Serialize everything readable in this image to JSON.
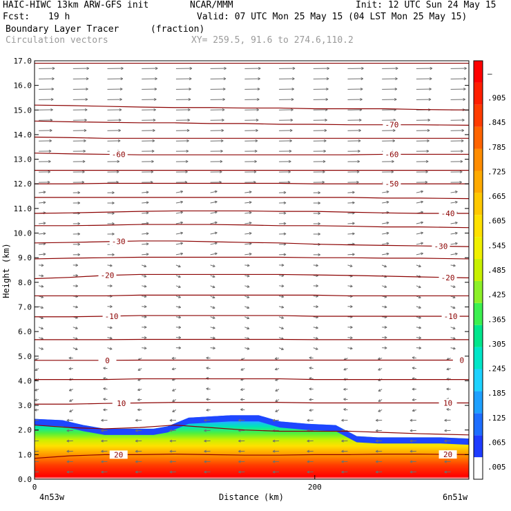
{
  "header": {
    "model": "HAIC-HIWC 13km ARW-GFS init",
    "org": "NCAR/MMM",
    "init": "Init: 12 UTC Sun 24 May 15",
    "fcst_label": "Fcst:",
    "fcst_value": "19 h",
    "valid": "Valid: 07 UTC Mon 25 May 15 (04 LST Mon 25 May 15)",
    "field_name": "Boundary Layer Tracer",
    "field_units": "(fraction)",
    "vector_label": "Circulation vectors",
    "xy_label": "XY= 259.5, 91.6 to 274.6,110.2"
  },
  "colors": {
    "contour": "#8b0000",
    "vector": "#6e6e6e",
    "colorbar": [
      "#ffffff",
      "#1e3cff",
      "#1e6eff",
      "#1ea0ff",
      "#1ed2ff",
      "#00e6c8",
      "#00e68c",
      "#3cf050",
      "#8cf028",
      "#c8f000",
      "#f0f000",
      "#ffe100",
      "#ffc800",
      "#ffaa00",
      "#ff8c00",
      "#ff6400",
      "#ff3c00",
      "#ff1e00",
      "#ff0000"
    ]
  },
  "chart_data": {
    "type": "vertical cross-section (contour + shaded + vectors)",
    "ylabel": "Height (km)",
    "xlabel": "Distance (km)",
    "ylim": [
      0,
      17
    ],
    "xlim": [
      0,
      310
    ],
    "y_ticks": [
      "0.0",
      "1.0",
      "2.0",
      "3.0",
      "4.0",
      "5.0",
      "6.0",
      "7.0",
      "8.0",
      "9.0",
      "10.0",
      "11.0",
      "12.0",
      "13.0",
      "14.0",
      "15.0",
      "16.0",
      "17.0"
    ],
    "x_ticks": [
      {
        "x": 0,
        "label": "0"
      },
      {
        "x": 200,
        "label": "200"
      }
    ],
    "x_end_labels": {
      "left": "4n53w",
      "right": "6n51w"
    },
    "colorbar_labels": [
      ".005",
      ".065",
      ".125",
      ".185",
      ".245",
      ".305",
      ".365",
      ".425",
      ".485",
      ".545",
      ".605",
      ".665",
      ".725",
      ".785",
      ".845",
      ".905",
      "—"
    ],
    "contours": [
      {
        "label": "20",
        "heights": [
          0.85,
          0.95,
          1.0,
          1.0,
          1.02,
          1.0,
          0.98,
          0.98,
          1.0,
          1.0,
          1.02,
          1.02,
          1.0
        ],
        "labels_at": [
          {
            "x": 60,
            "text": "20"
          },
          {
            "x": 295,
            "text": "20"
          }
        ]
      },
      {
        "label": "",
        "heights": [
          2.2,
          2.1,
          2.05,
          2.1,
          2.2,
          2.1,
          2.0,
          1.95,
          1.95,
          1.95,
          1.9,
          1.85,
          1.8
        ],
        "labels_at": []
      },
      {
        "label": "10",
        "heights": [
          3.05,
          3.05,
          3.08,
          3.1,
          3.12,
          3.12,
          3.12,
          3.12,
          3.1,
          3.1,
          3.1,
          3.1,
          3.1
        ],
        "labels_at": [
          {
            "x": 62,
            "text": "10"
          },
          {
            "x": 295,
            "text": "10"
          }
        ]
      },
      {
        "label": "",
        "heights": [
          4.05,
          4.05,
          4.05,
          4.08,
          4.08,
          4.08,
          4.08,
          4.08,
          4.05,
          4.05,
          4.05,
          4.05,
          4.05
        ],
        "labels_at": []
      },
      {
        "label": "0",
        "heights": [
          4.83,
          4.83,
          4.83,
          4.84,
          4.84,
          4.84,
          4.84,
          4.84,
          4.84,
          4.84,
          4.84,
          4.84,
          4.84
        ],
        "labels_at": [
          {
            "x": 52,
            "text": "0"
          },
          {
            "x": 305,
            "text": "0"
          }
        ]
      },
      {
        "label": "",
        "heights": [
          5.67,
          5.67,
          5.67,
          5.68,
          5.68,
          5.68,
          5.68,
          5.68,
          5.67,
          5.67,
          5.67,
          5.67,
          5.67
        ],
        "labels_at": []
      },
      {
        "label": "-10",
        "heights": [
          6.6,
          6.6,
          6.62,
          6.65,
          6.65,
          6.65,
          6.65,
          6.65,
          6.62,
          6.62,
          6.62,
          6.62,
          6.62
        ],
        "labels_at": [
          {
            "x": 55,
            "text": "-10"
          },
          {
            "x": 297,
            "text": "-10"
          }
        ]
      },
      {
        "label": "",
        "heights": [
          7.45,
          7.45,
          7.45,
          7.48,
          7.48,
          7.48,
          7.48,
          7.48,
          7.48,
          7.45,
          7.45,
          7.45,
          7.45
        ],
        "labels_at": []
      },
      {
        "label": "-20",
        "heights": [
          8.15,
          8.2,
          8.28,
          8.32,
          8.32,
          8.32,
          8.32,
          8.32,
          8.3,
          8.28,
          8.25,
          8.22,
          8.18
        ],
        "labels_at": [
          {
            "x": 52,
            "text": "-20"
          },
          {
            "x": 295,
            "text": "-20"
          }
        ]
      },
      {
        "label": "",
        "heights": [
          8.95,
          8.98,
          9.0,
          9.02,
          9.02,
          9.02,
          9.02,
          9.02,
          9.0,
          9.0,
          8.98,
          8.98,
          8.95
        ],
        "labels_at": []
      },
      {
        "label": "-30",
        "heights": [
          9.6,
          9.62,
          9.65,
          9.68,
          9.68,
          9.65,
          9.62,
          9.6,
          9.55,
          9.52,
          9.5,
          9.48,
          9.45
        ],
        "labels_at": [
          {
            "x": 60,
            "text": "-30"
          },
          {
            "x": 290,
            "text": "-30"
          }
        ]
      },
      {
        "label": "",
        "heights": [
          10.3,
          10.3,
          10.32,
          10.35,
          10.35,
          10.35,
          10.33,
          10.3,
          10.3,
          10.28,
          10.25,
          10.25,
          10.22
        ],
        "labels_at": []
      },
      {
        "label": "-40",
        "heights": [
          10.8,
          10.82,
          10.85,
          10.88,
          10.9,
          10.9,
          10.9,
          10.88,
          10.88,
          10.85,
          10.82,
          10.8,
          10.8
        ],
        "labels_at": [
          {
            "x": 295,
            "text": "-40"
          }
        ]
      },
      {
        "label": "",
        "heights": [
          11.45,
          11.45,
          11.45,
          11.45,
          11.45,
          11.45,
          11.45,
          11.45,
          11.45,
          11.45,
          11.42,
          11.42,
          11.4
        ],
        "labels_at": []
      },
      {
        "label": "-50",
        "heights": [
          12.0,
          12.0,
          12.02,
          12.02,
          12.02,
          12.02,
          12.02,
          12.02,
          12.0,
          12.0,
          12.0,
          12.0,
          12.0
        ],
        "labels_at": [
          {
            "x": 255,
            "text": "-50"
          }
        ]
      },
      {
        "label": "",
        "heights": [
          12.55,
          12.55,
          12.55,
          12.55,
          12.55,
          12.55,
          12.55,
          12.55,
          12.55,
          12.55,
          12.55,
          12.55,
          12.55
        ],
        "labels_at": []
      },
      {
        "label": "-60",
        "heights": [
          13.25,
          13.22,
          13.2,
          13.18,
          13.18,
          13.18,
          13.18,
          13.18,
          13.18,
          13.18,
          13.2,
          13.2,
          13.2
        ],
        "labels_at": [
          {
            "x": 60,
            "text": "-60"
          },
          {
            "x": 255,
            "text": "-60"
          }
        ]
      },
      {
        "label": "",
        "heights": [
          13.9,
          13.88,
          13.85,
          13.85,
          13.85,
          13.85,
          13.85,
          13.85,
          13.85,
          13.85,
          13.85,
          13.85,
          13.85
        ],
        "labels_at": []
      },
      {
        "label": "-70",
        "heights": [
          14.55,
          14.52,
          14.5,
          14.48,
          14.48,
          14.45,
          14.45,
          14.42,
          14.42,
          14.4,
          14.4,
          14.4,
          14.38
        ],
        "labels_at": [
          {
            "x": 255,
            "text": "-70"
          }
        ]
      },
      {
        "label": "",
        "heights": [
          15.2,
          15.18,
          15.15,
          15.12,
          15.1,
          15.1,
          15.08,
          15.08,
          15.05,
          15.05,
          15.05,
          15.02,
          15.0
        ],
        "labels_at": []
      },
      {
        "label": "",
        "heights": [
          16.9,
          16.9,
          16.9,
          16.9,
          16.9,
          16.9,
          16.9,
          16.9,
          16.9,
          16.9,
          16.9,
          16.9,
          16.9
        ],
        "labels_at": []
      }
    ],
    "contour_x": [
      0,
      25,
      50,
      75,
      100,
      125,
      150,
      175,
      200,
      225,
      250,
      275,
      310
    ],
    "tracer_top_km": [
      [
        0,
        2.45
      ],
      [
        20,
        2.4
      ],
      [
        35,
        2.2
      ],
      [
        50,
        2.05
      ],
      [
        85,
        2.05
      ],
      [
        95,
        2.15
      ],
      [
        110,
        2.5
      ],
      [
        125,
        2.55
      ],
      [
        140,
        2.6
      ],
      [
        160,
        2.6
      ],
      [
        175,
        2.35
      ],
      [
        195,
        2.25
      ],
      [
        215,
        2.2
      ],
      [
        230,
        1.75
      ],
      [
        245,
        1.7
      ],
      [
        265,
        1.7
      ],
      [
        290,
        1.7
      ],
      [
        310,
        1.65
      ]
    ]
  }
}
